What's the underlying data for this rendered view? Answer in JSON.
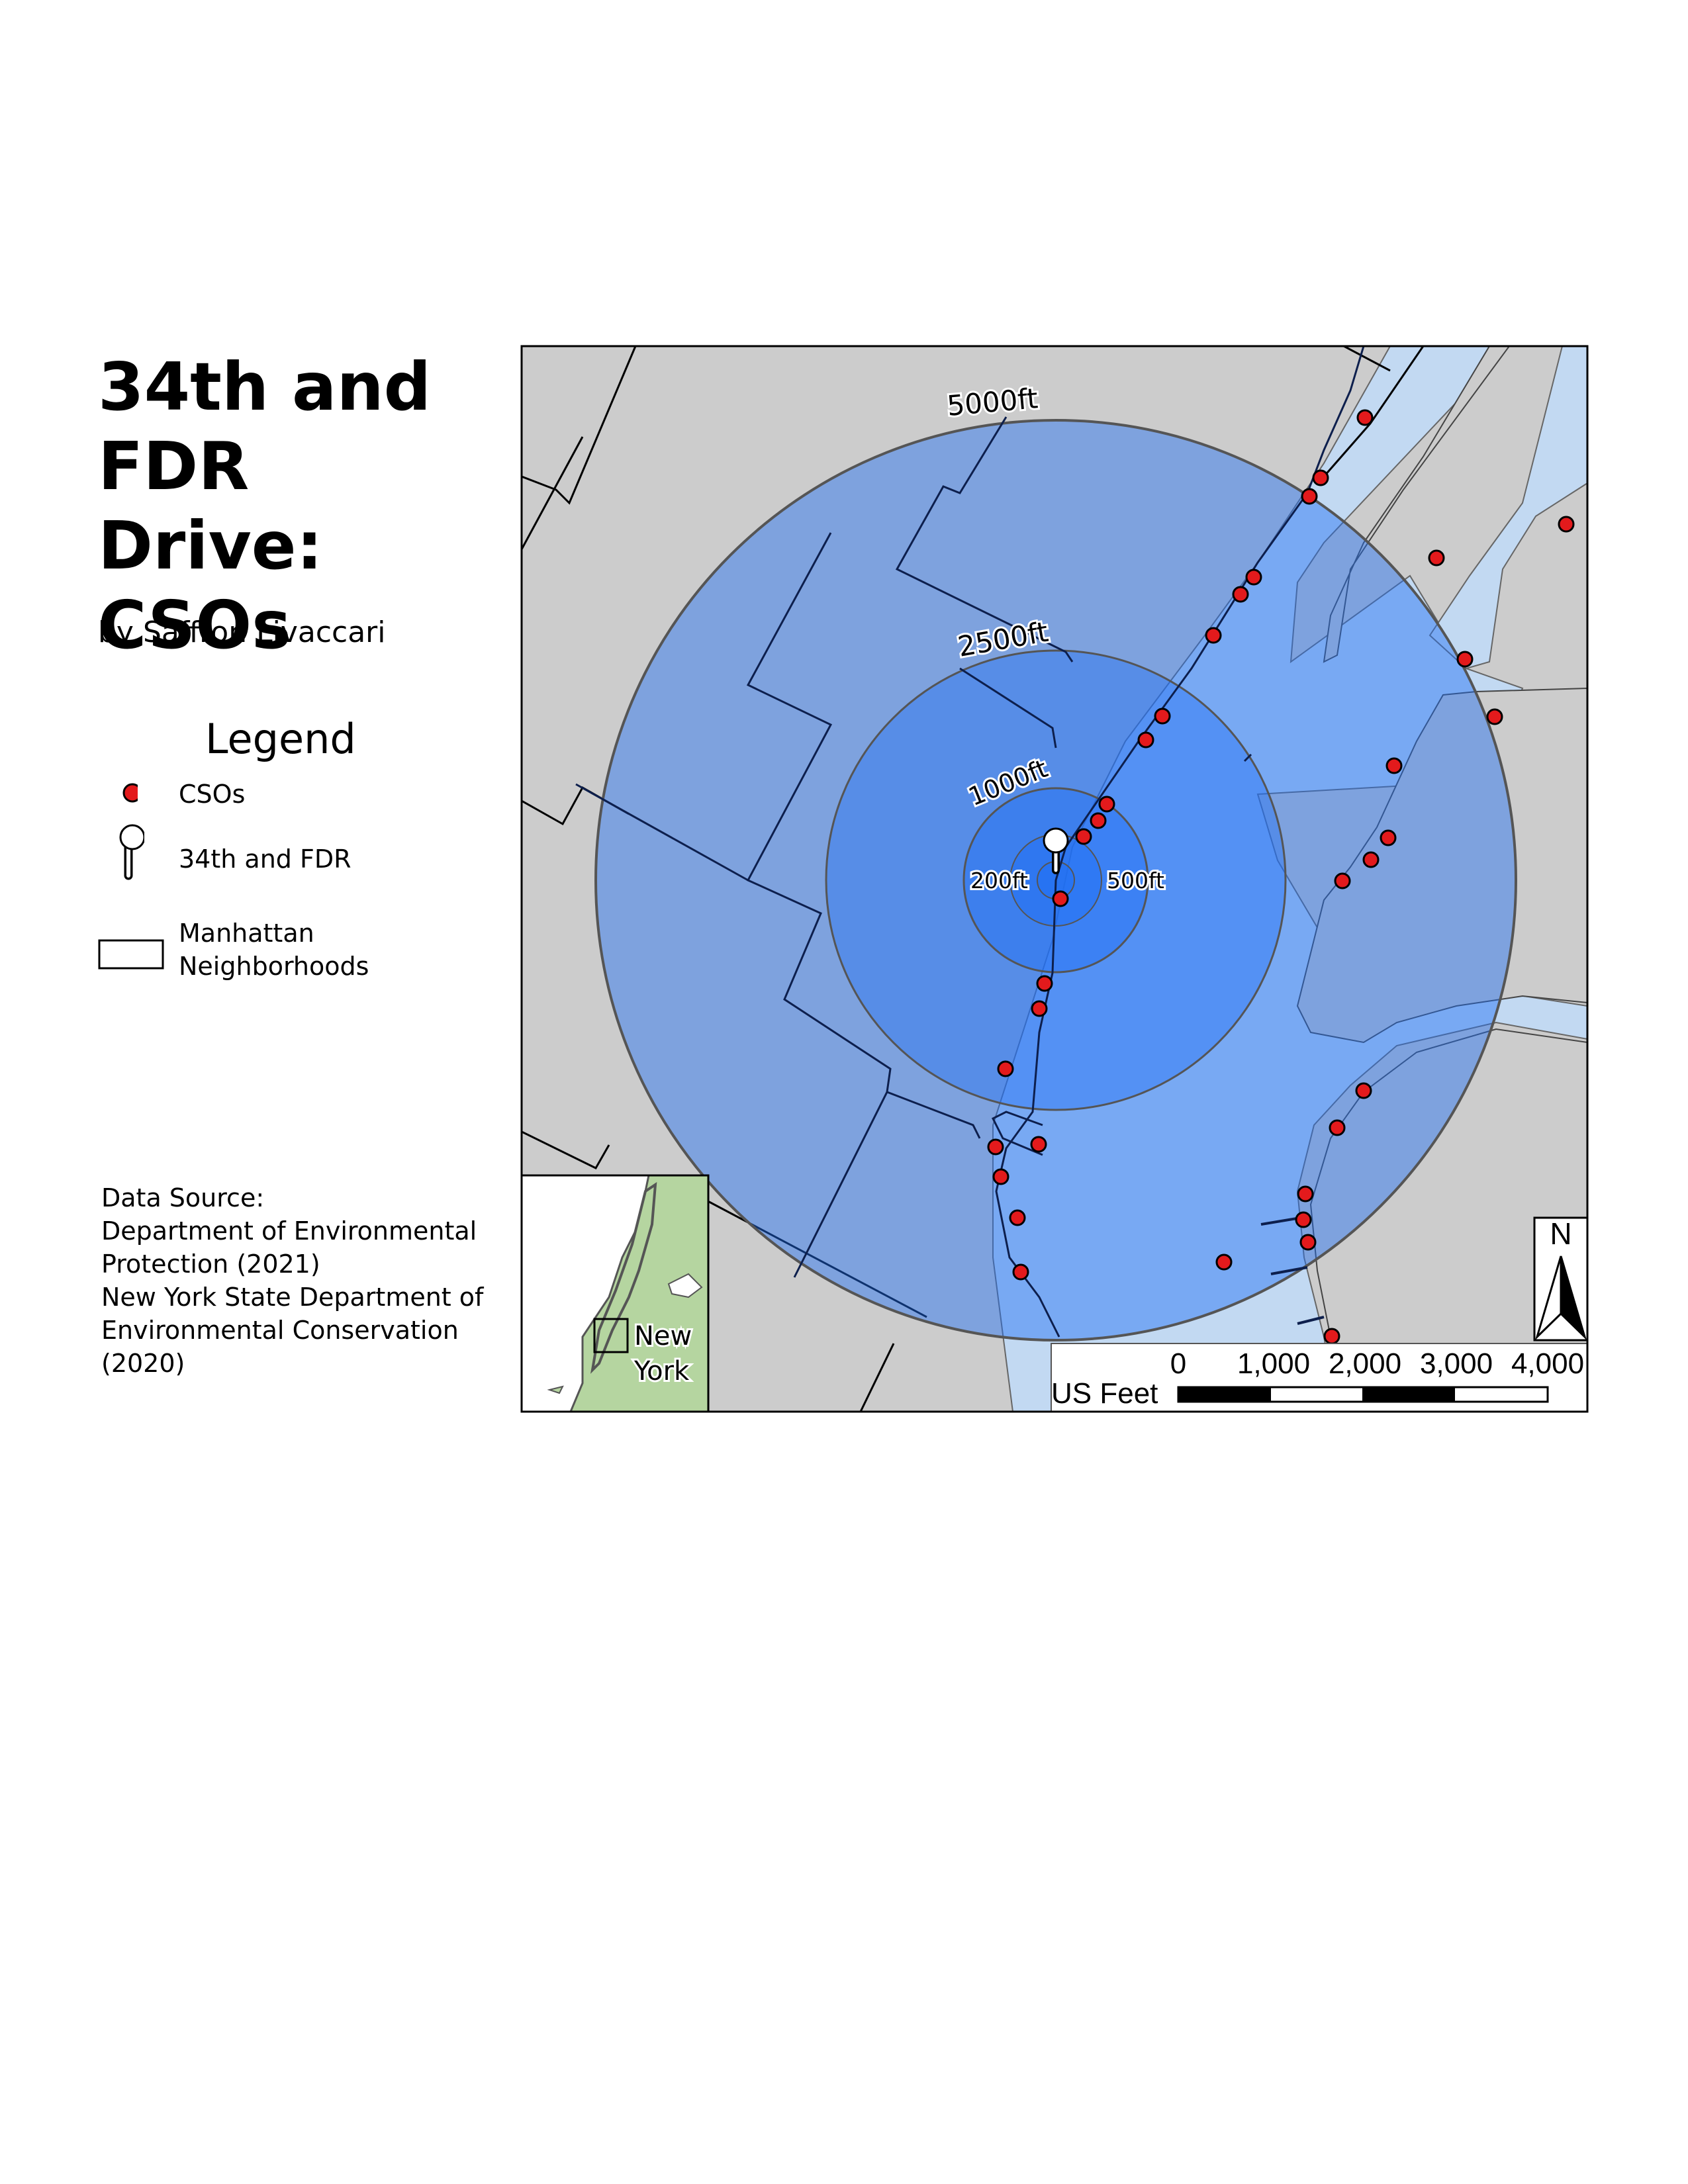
{
  "title_lines": [
    "34th and",
    "FDR Drive:",
    "CSOs"
  ],
  "author": "by Saffron Livaccari",
  "legend": {
    "title": "Legend",
    "items": [
      {
        "label": "CSOs",
        "icon": "red-dot-icon"
      },
      {
        "label": "34th and FDR",
        "icon": "map-pin-icon"
      },
      {
        "label_lines": [
          "Manhattan",
          "Neighborhoods"
        ],
        "icon": "polygon-outline-icon"
      }
    ]
  },
  "source_lines": [
    "Data Source:",
    "Department of Environmental",
    "Protection (2021)",
    "New York State Department of",
    "Environmental Conservation",
    "(2020)"
  ],
  "map": {
    "buffer_labels": {
      "r5000": "5000ft",
      "r2500": "2500ft",
      "r1000": "1000ft",
      "r500": "500ft",
      "r200": "200ft"
    },
    "north_arrow": "N",
    "inset_label_lines": [
      "New",
      "York"
    ],
    "scale_bar": {
      "unit": "US Feet",
      "ticks": [
        "0",
        "1,000",
        "2,000",
        "3,000",
        "4,000"
      ]
    },
    "colors": {
      "land": "#cccccc",
      "water": "#c2d9f2",
      "inset_land": "#b5d5a0",
      "cso": "#e31a1c",
      "buffer": "#1f6ff5",
      "boundary": "#0d1f4d"
    }
  }
}
